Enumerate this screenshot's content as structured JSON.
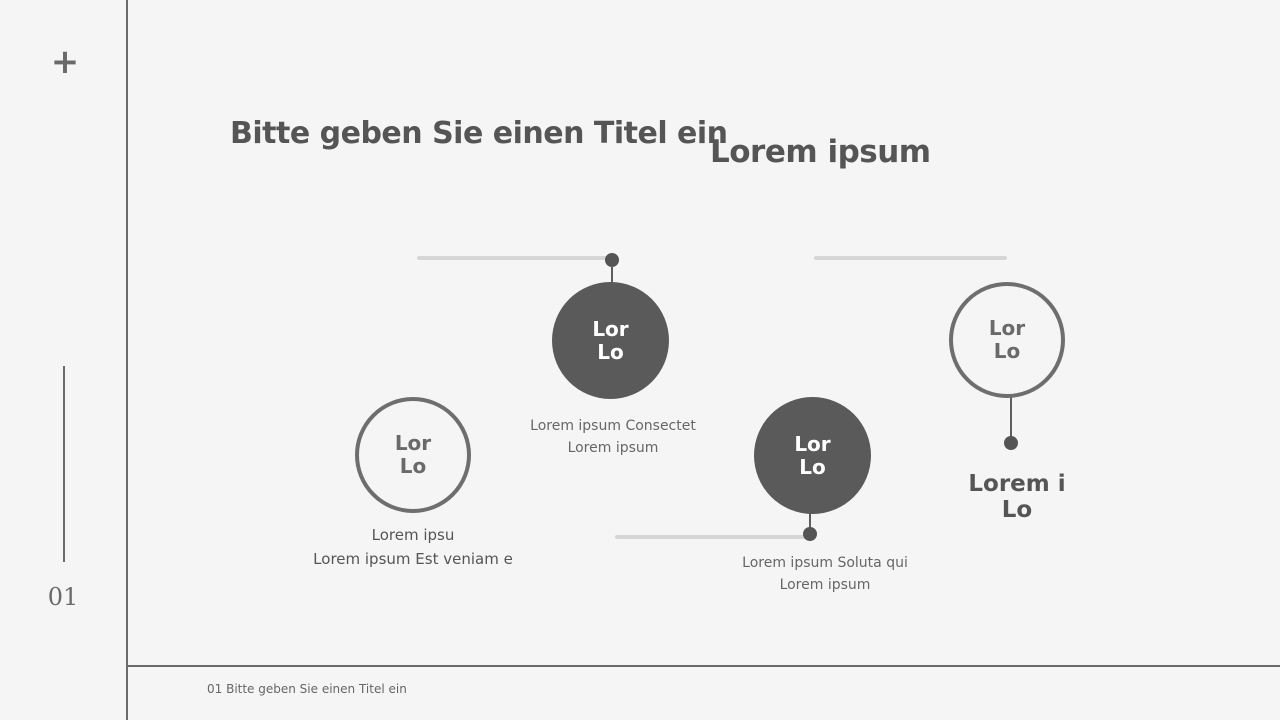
{
  "sidebar": {
    "plus_icon": "plus-icon",
    "page_number": "01"
  },
  "header": {
    "title": "Bitte geben Sie einen Titel ein",
    "subtitle": "Lorem ipsum"
  },
  "diagram": {
    "nodes": [
      {
        "label": "Lor\nLo",
        "style": "outline",
        "caption_line1": "Lorem ipsu",
        "caption_line2": "Lorem ipsum Est veniam e"
      },
      {
        "label": "Lor\nLo",
        "style": "filled",
        "caption_line1": "Lorem ipsum Consectet",
        "caption_line2": "Lorem ipsum"
      },
      {
        "label": "Lor\nLo",
        "style": "filled",
        "caption_line1": "Lorem ipsum Soluta qui",
        "caption_line2": "Lorem ipsum"
      },
      {
        "label": "Lor\nLo",
        "style": "outline",
        "bold_caption": "Lorem i\nLo"
      }
    ]
  },
  "footer": {
    "text": "01 Bitte geben Sie einen Titel ein"
  },
  "colors": {
    "background": "#f5f5f5",
    "accent_dark": "#5a5a5a",
    "line_light": "#d6d6d6",
    "frame_line": "#6a6a6a"
  }
}
